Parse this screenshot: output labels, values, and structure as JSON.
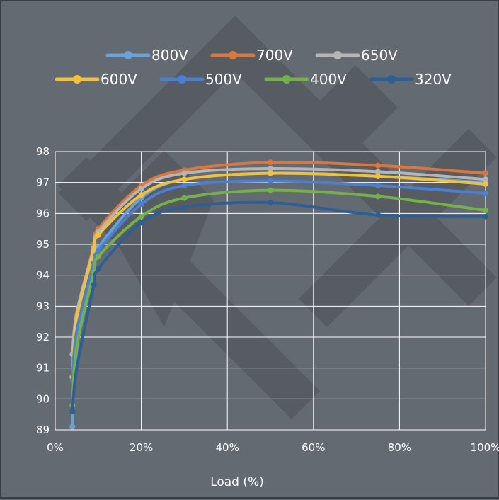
{
  "chart_data": {
    "type": "line",
    "title": "",
    "xlabel": "Load (%)",
    "ylabel": "",
    "xlim": [
      0,
      100
    ],
    "ylim": [
      89,
      98
    ],
    "x_ticks": [
      "0%",
      "20%",
      "40%",
      "60%",
      "80%",
      "100%"
    ],
    "y_ticks": [
      "89",
      "90",
      "91",
      "92",
      "93",
      "94",
      "95",
      "96",
      "97",
      "98"
    ],
    "grid": true,
    "legend_position": "top",
    "x": [
      4,
      5,
      9,
      10,
      20,
      30,
      50,
      75,
      100
    ],
    "series": [
      {
        "name": "800V",
        "color": "#6aa2d8",
        "values": [
          89.1,
          91.6,
          94.5,
          94.9,
          96.5,
          97.1,
          97.3,
          97.2,
          97.0
        ]
      },
      {
        "name": "700V",
        "color": "#d9773f",
        "values": [
          90.7,
          92.6,
          95.0,
          95.5,
          96.9,
          97.4,
          97.65,
          97.55,
          97.3
        ]
      },
      {
        "name": "650V",
        "color": "#b5b5b5",
        "values": [
          91.45,
          92.8,
          94.9,
          95.4,
          96.8,
          97.3,
          97.45,
          97.35,
          97.1
        ]
      },
      {
        "name": "600V",
        "color": "#f2c13c",
        "values": [
          90.7,
          92.6,
          94.8,
          95.3,
          96.6,
          97.1,
          97.3,
          97.2,
          96.95
        ]
      },
      {
        "name": "500V",
        "color": "#4c7fd0",
        "values": [
          90.6,
          92.2,
          94.4,
          94.8,
          96.3,
          96.9,
          97.05,
          96.9,
          96.65
        ]
      },
      {
        "name": "400V",
        "color": "#76b04a",
        "values": [
          89.8,
          91.7,
          94.1,
          94.6,
          95.9,
          96.5,
          96.75,
          96.55,
          96.1
        ]
      },
      {
        "name": "320V",
        "color": "#2d5f95",
        "values": [
          89.6,
          91.0,
          93.7,
          94.2,
          95.7,
          96.2,
          96.35,
          95.95,
          95.9
        ]
      }
    ]
  }
}
